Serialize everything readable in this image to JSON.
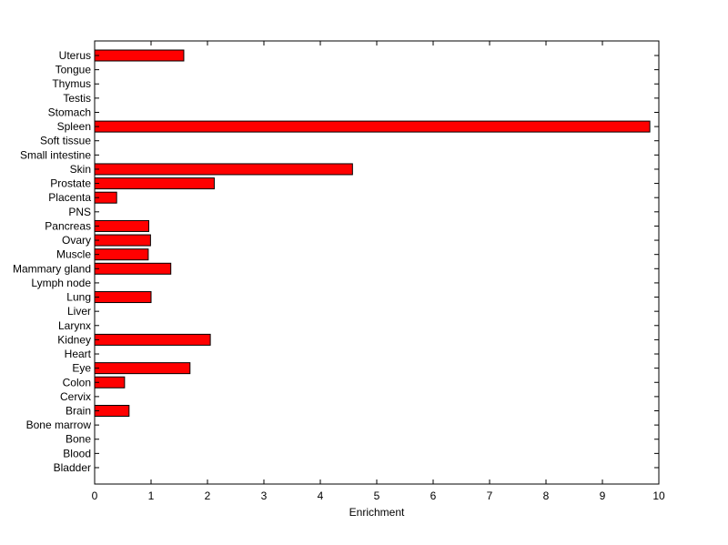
{
  "chart_data": {
    "type": "bar",
    "orientation": "horizontal",
    "title": "",
    "xlabel": "Enrichment",
    "ylabel": "",
    "xlim": [
      0,
      10
    ],
    "xticks": [
      0,
      1,
      2,
      3,
      4,
      5,
      6,
      7,
      8,
      9,
      10
    ],
    "grid": false,
    "bar_color": "#ff0000",
    "categories": [
      "Uterus",
      "Tongue",
      "Thymus",
      "Testis",
      "Stomach",
      "Spleen",
      "Soft tissue",
      "Small intestine",
      "Skin",
      "Prostate",
      "Placenta",
      "PNS",
      "Pancreas",
      "Ovary",
      "Muscle",
      "Mammary gland",
      "Lymph node",
      "Lung",
      "Liver",
      "Larynx",
      "Kidney",
      "Heart",
      "Eye",
      "Colon",
      "Cervix",
      "Brain",
      "Bone marrow",
      "Bone",
      "Blood",
      "Bladder"
    ],
    "values": [
      1.58,
      0,
      0,
      0,
      0,
      9.84,
      0,
      0,
      4.57,
      2.12,
      0.39,
      0,
      0.96,
      0.99,
      0.95,
      1.35,
      0,
      1.0,
      0,
      0,
      2.05,
      0,
      1.69,
      0.53,
      0,
      0.61,
      0,
      0,
      0,
      0
    ]
  }
}
